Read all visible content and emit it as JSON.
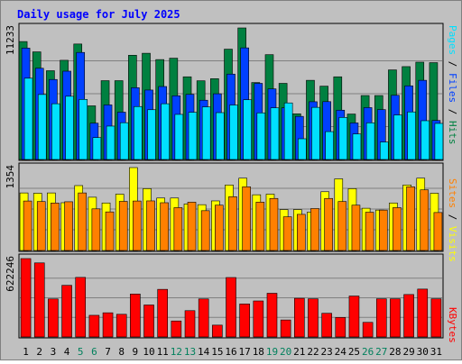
{
  "chart_data": {
    "type": "bar",
    "title": "Daily usage for July 2025",
    "categories": [
      "1",
      "2",
      "3",
      "4",
      "5",
      "6",
      "7",
      "8",
      "9",
      "10",
      "11",
      "12",
      "13",
      "14",
      "15",
      "16",
      "17",
      "18",
      "19",
      "20",
      "21",
      "22",
      "23",
      "24",
      "25",
      "26",
      "27",
      "28",
      "29",
      "30",
      "31"
    ],
    "weekend_days": [
      "5",
      "6",
      "12",
      "13",
      "19",
      "20",
      "26",
      "27"
    ],
    "panels": [
      {
        "id": "hits-files-pages",
        "ymax": 11233,
        "ymax_label": "11233",
        "series": [
          {
            "name": "Hits",
            "color": "#008040",
            "values": [
              10070,
              9190,
              7580,
              8470,
              9860,
              4580,
              6730,
              6730,
              8900,
              9070,
              8530,
              8650,
              7060,
              6720,
              6900,
              9420,
              11233,
              6570,
              8950,
              6500,
              3900,
              6760,
              6260,
              7060,
              3880,
              5460,
              5460,
              7650,
              7930,
              8310,
              8270
            ]
          },
          {
            "name": "Files",
            "color": "#0040ff",
            "values": [
              9510,
              7790,
              6830,
              7540,
              9140,
              3100,
              4660,
              4040,
              6130,
              5930,
              6230,
              5440,
              5560,
              5060,
              5610,
              7290,
              9530,
              6500,
              6030,
              4410,
              3680,
              4930,
              4940,
              4210,
              3120,
              4430,
              4260,
              5480,
              6290,
              6760,
              3330
            ]
          },
          {
            "name": "Pages",
            "color": "#00e0ff",
            "values": [
              6940,
              5550,
              4760,
              5400,
              5130,
              1870,
              2850,
              3140,
              4520,
              4250,
              4760,
              3850,
              4030,
              4490,
              4000,
              4650,
              5100,
              3980,
              4410,
              4830,
              1770,
              4450,
              2380,
              3590,
              2180,
              3130,
              1490,
              3800,
              4060,
              3310,
              3080
            ]
          }
        ]
      },
      {
        "id": "visits-sites",
        "ymax": 1354,
        "ymax_label": "1354",
        "series": [
          {
            "name": "Visits",
            "color": "#ffff00",
            "values": [
              940,
              935,
              940,
              780,
              1060,
              870,
              776,
              920,
              1354,
              1010,
              857,
              857,
              760,
              748,
              810,
              1070,
              1181,
              910,
              920,
              668,
              668,
              627,
              960,
              1170,
              1010,
              690,
              660,
              776,
              1070,
              1181,
              935
            ]
          },
          {
            "name": "Sites",
            "color": "#ff8000",
            "values": [
              808,
              800,
              775,
              796,
              940,
              680,
              630,
              802,
              808,
              810,
              780,
              700,
              789,
              650,
              740,
              878,
              1040,
              790,
              850,
              550,
              590,
              685,
              850,
              800,
              740,
              625,
              660,
              700,
              1040,
              990,
              620
            ]
          }
        ]
      },
      {
        "id": "kbytes",
        "ymax": 622246,
        "ymax_label": "622246",
        "series": [
          {
            "name": "KBytes",
            "color": "#ff0000",
            "values": [
              622246,
              588000,
              302000,
              410000,
              473000,
              172000,
              192000,
              180000,
              341000,
              254000,
              378000,
              127000,
              209000,
              302000,
              94000,
              472000,
              262000,
              286000,
              347000,
              135000,
              307000,
              303000,
              188000,
              155000,
              325000,
              116000,
              303000,
              303000,
              337000,
              380000,
              303000
            ]
          }
        ]
      }
    ],
    "legend_right": [
      {
        "text": "Hits",
        "color": "#008040"
      },
      {
        "text": "/",
        "color": "#000000"
      },
      {
        "text": "Files",
        "color": "#0040ff"
      },
      {
        "text": "/",
        "color": "#000000"
      },
      {
        "text": "Pages",
        "color": "#00e0ff"
      },
      {
        "text": "Visits",
        "color": "#ffff00"
      },
      {
        "text": "/",
        "color": "#000000"
      },
      {
        "text": "Sites",
        "color": "#ff8000"
      },
      {
        "text": "KBytes",
        "color": "#ff0000"
      }
    ],
    "colors": {
      "background": "#c0c0c0",
      "title": "#0000ff",
      "weekday_label": "#000000",
      "weekend_label": "#00805c",
      "grid": "#808080"
    }
  }
}
